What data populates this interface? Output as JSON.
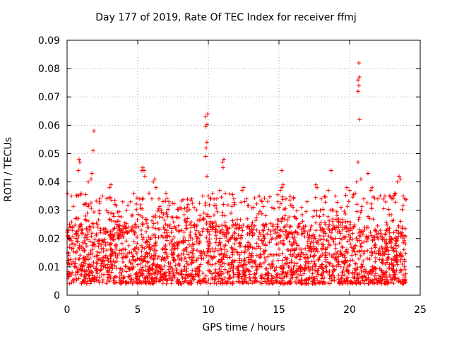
{
  "chart_data": {
    "type": "scatter",
    "title": "Day 177 of 2019, Rate Of TEC Index for receiver ffmj",
    "xlabel": "GPS time / hours",
    "ylabel": "ROTI / TECUs",
    "xlim": [
      0,
      25
    ],
    "ylim": [
      0,
      0.09
    ],
    "xticks": [
      0,
      5,
      10,
      15,
      20,
      25
    ],
    "xtick_labels": [
      "0",
      "5",
      "10",
      "15",
      "20",
      "25"
    ],
    "yticks": [
      0,
      0.01,
      0.02,
      0.03,
      0.04,
      0.05,
      0.06,
      0.07,
      0.08,
      0.09
    ],
    "ytick_labels": [
      "0",
      "0.01",
      "0.02",
      "0.03",
      "0.04",
      "0.05",
      "0.06",
      "0.07",
      "0.08",
      "0.09"
    ],
    "grid": true,
    "marker": "+",
    "series": [
      {
        "name": "ROTI",
        "color": "#ff0000",
        "dense_band": {
          "x_range": [
            0,
            24
          ],
          "y_range": [
            0.004,
            0.024
          ],
          "count": 2200
        },
        "upper_range": {
          "x_range": [
            0,
            24
          ],
          "y_range": [
            0.024,
            0.036
          ],
          "count": 420
        },
        "points": [
          [
            0.02,
            0.036
          ],
          [
            0.3,
            0.035
          ],
          [
            0.8,
            0.044
          ],
          [
            0.9,
            0.047
          ],
          [
            0.85,
            0.048
          ],
          [
            1.0,
            0.036
          ],
          [
            1.2,
            0.032
          ],
          [
            1.5,
            0.04
          ],
          [
            1.7,
            0.041
          ],
          [
            1.75,
            0.043
          ],
          [
            1.85,
            0.051
          ],
          [
            1.9,
            0.058
          ],
          [
            2.3,
            0.034
          ],
          [
            2.5,
            0.035
          ],
          [
            2.8,
            0.034
          ],
          [
            3.0,
            0.038
          ],
          [
            3.1,
            0.039
          ],
          [
            3.4,
            0.032
          ],
          [
            5.3,
            0.044
          ],
          [
            5.35,
            0.045
          ],
          [
            5.45,
            0.044
          ],
          [
            5.5,
            0.042
          ],
          [
            5.8,
            0.036
          ],
          [
            6.0,
            0.034
          ],
          [
            6.1,
            0.04
          ],
          [
            6.2,
            0.041
          ],
          [
            6.3,
            0.038
          ],
          [
            6.5,
            0.034
          ],
          [
            7.0,
            0.036
          ],
          [
            7.2,
            0.033
          ],
          [
            8.0,
            0.031
          ],
          [
            8.5,
            0.031
          ],
          [
            9.0,
            0.031
          ],
          [
            9.6,
            0.035
          ],
          [
            9.8,
            0.049
          ],
          [
            9.85,
            0.052
          ],
          [
            9.9,
            0.054
          ],
          [
            9.8,
            0.0595
          ],
          [
            9.9,
            0.0602
          ],
          [
            9.8,
            0.063
          ],
          [
            9.95,
            0.064
          ],
          [
            9.9,
            0.042
          ],
          [
            10.0,
            0.035
          ],
          [
            10.3,
            0.036
          ],
          [
            10.6,
            0.034
          ],
          [
            10.8,
            0.037
          ],
          [
            11.0,
            0.047
          ],
          [
            11.1,
            0.048
          ],
          [
            11.05,
            0.045
          ],
          [
            11.2,
            0.036
          ],
          [
            11.8,
            0.034
          ],
          [
            12.4,
            0.037
          ],
          [
            12.5,
            0.038
          ],
          [
            12.7,
            0.034
          ],
          [
            13.2,
            0.031
          ],
          [
            13.6,
            0.035
          ],
          [
            13.8,
            0.033
          ],
          [
            14.5,
            0.031
          ],
          [
            15.0,
            0.031
          ],
          [
            15.1,
            0.037
          ],
          [
            15.2,
            0.038
          ],
          [
            15.3,
            0.039
          ],
          [
            15.2,
            0.044
          ],
          [
            15.5,
            0.034
          ],
          [
            16.0,
            0.031
          ],
          [
            16.6,
            0.031
          ],
          [
            17.0,
            0.033
          ],
          [
            17.6,
            0.039
          ],
          [
            17.7,
            0.038
          ],
          [
            18.0,
            0.034
          ],
          [
            18.5,
            0.037
          ],
          [
            18.7,
            0.044
          ],
          [
            19.0,
            0.035
          ],
          [
            19.4,
            0.031
          ],
          [
            19.8,
            0.038
          ],
          [
            20.0,
            0.037
          ],
          [
            20.4,
            0.036
          ],
          [
            20.5,
            0.04
          ],
          [
            20.6,
            0.047
          ],
          [
            20.7,
            0.062
          ],
          [
            20.6,
            0.072
          ],
          [
            20.65,
            0.074
          ],
          [
            20.6,
            0.076
          ],
          [
            20.7,
            0.077
          ],
          [
            20.65,
            0.082
          ],
          [
            20.8,
            0.041
          ],
          [
            21.0,
            0.034
          ],
          [
            21.3,
            0.043
          ],
          [
            21.5,
            0.037
          ],
          [
            21.6,
            0.038
          ],
          [
            22.0,
            0.034
          ],
          [
            22.5,
            0.035
          ],
          [
            23.0,
            0.034
          ],
          [
            23.2,
            0.036
          ],
          [
            23.4,
            0.04
          ],
          [
            23.5,
            0.042
          ],
          [
            23.6,
            0.041
          ],
          [
            23.8,
            0.035
          ],
          [
            23.9,
            0.034
          ]
        ]
      }
    ]
  }
}
